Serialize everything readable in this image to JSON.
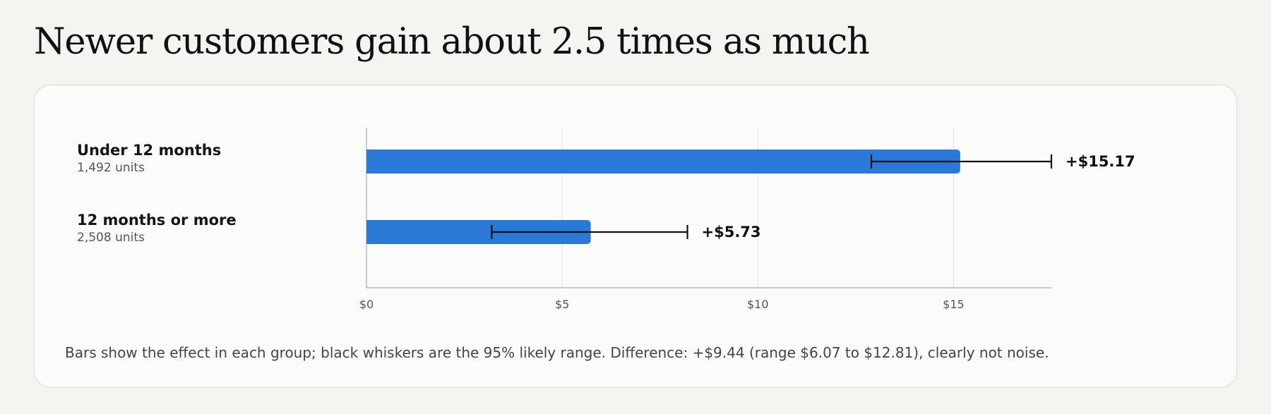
{
  "title": "Newer customers gain about 2.5 times as much",
  "groups": [
    {
      "name": "Under 12 months",
      "units": "1,492 units"
    },
    {
      "name": "12 months or more",
      "units": "2,508 units"
    }
  ],
  "footnote": "Bars show the effect in each group; black whiskers are the 95% likely range. Difference: +$9.44 (range $6.07 to $12.81), clearly not noise.",
  "colors": {
    "bar": "#2b79d6",
    "whisker": "#111111",
    "grid": "#e4e3df",
    "axis": "#a9a9a9"
  },
  "chart_data": {
    "type": "bar",
    "orientation": "horizontal",
    "title": "Newer customers gain about 2.5 times as much",
    "categories": [
      "Under 12 months",
      "12 months or more"
    ],
    "values": [
      15.17,
      5.73
    ],
    "value_labels": [
      "+$15.17",
      "+$5.73"
    ],
    "ci_low": [
      12.9,
      3.2
    ],
    "ci_high": [
      17.5,
      8.2
    ],
    "xlim": [
      0,
      17.5
    ],
    "xticks": [
      0,
      5,
      10,
      15
    ],
    "xtick_labels": [
      "$0",
      "$5",
      "$10",
      "$15"
    ],
    "grid": true
  }
}
